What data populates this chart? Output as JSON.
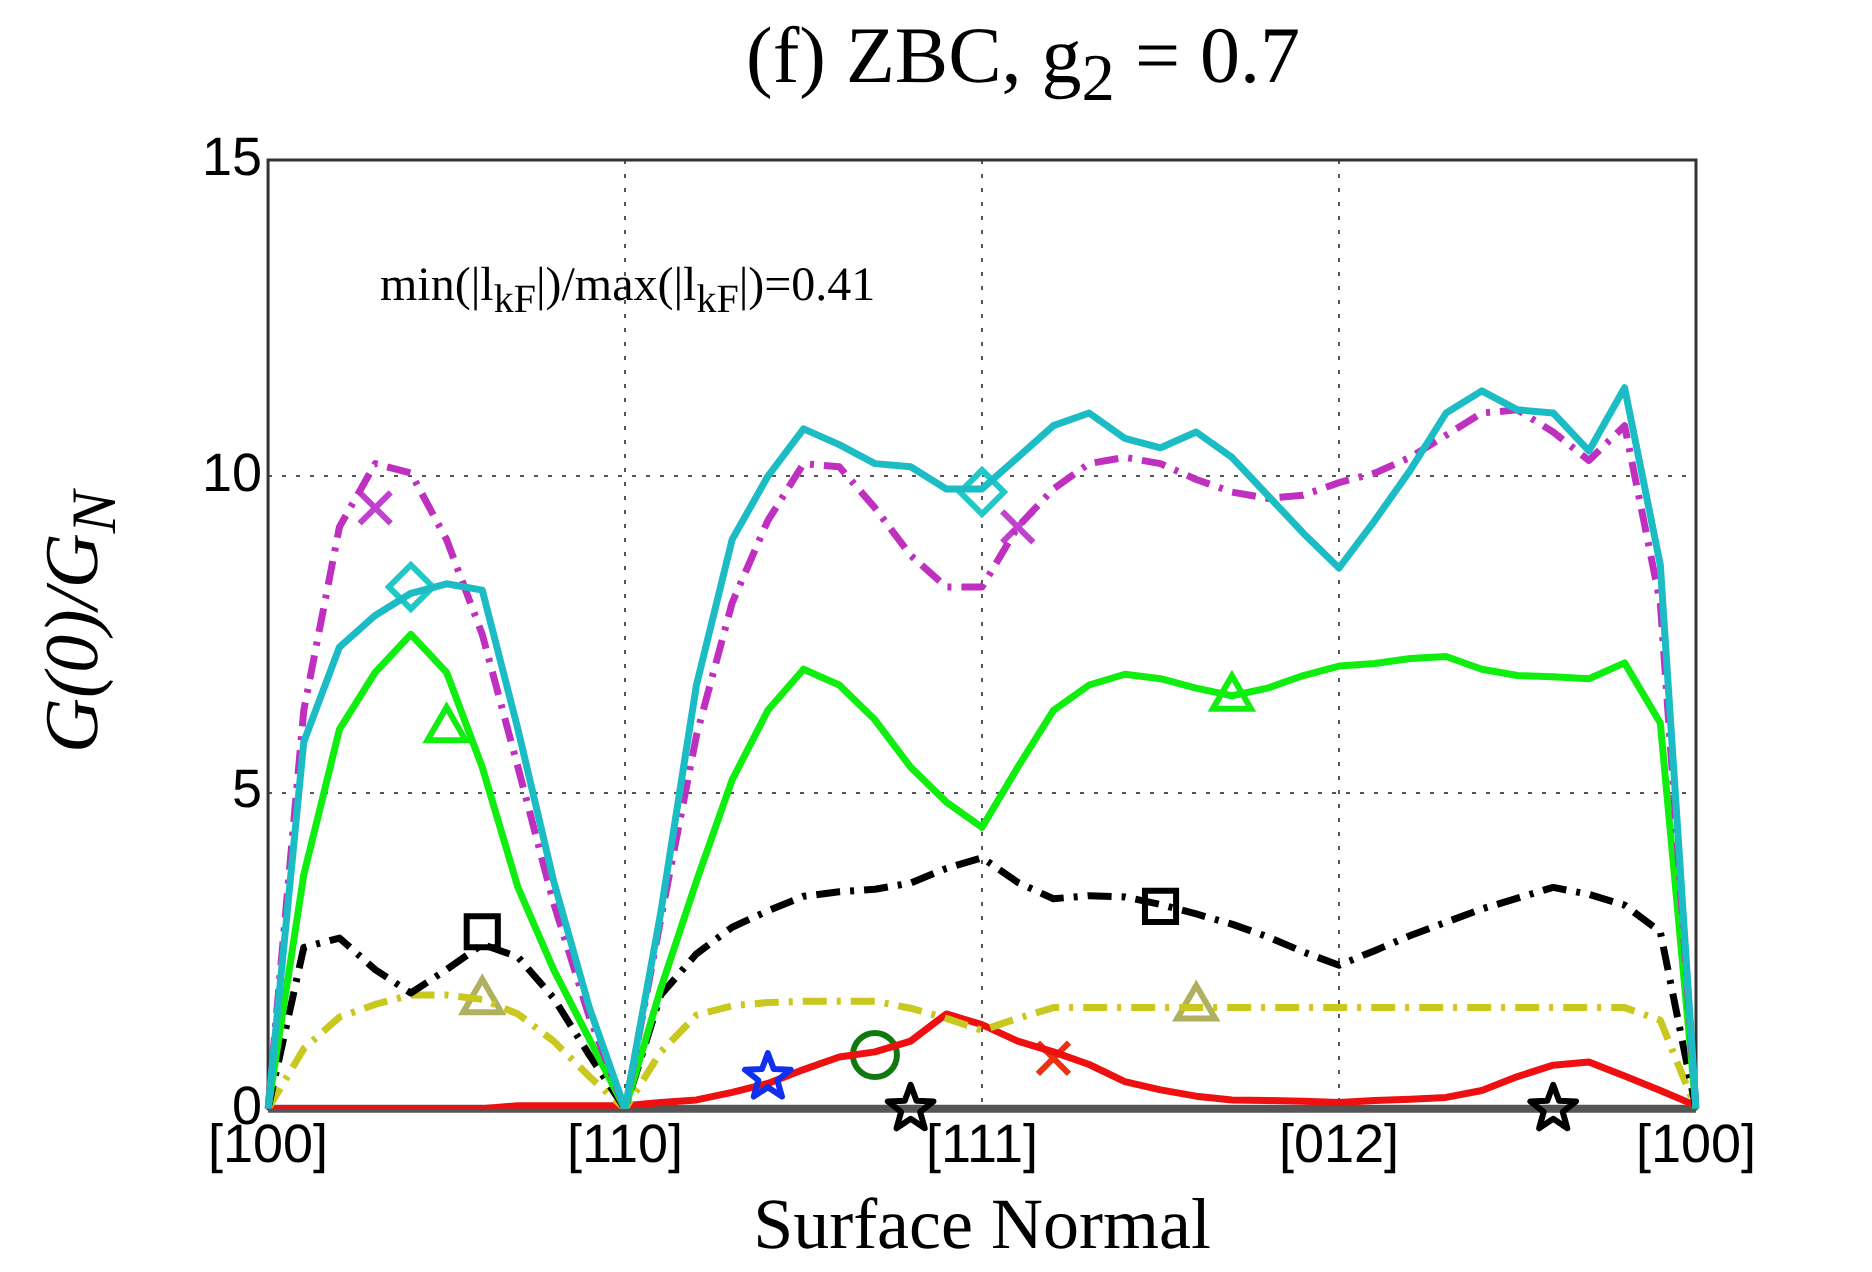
{
  "chart_data": {
    "type": "line",
    "title": "(f) ZBC, g$_{2}$ = 0.7",
    "xlabel": "Surface Normal",
    "ylabel": "G(0)/G$_{N}$",
    "annotations": [
      "min(|l$_{kF}$|)/max(|l$_{kF}$|)=0.41"
    ],
    "categories": [
      "[100]",
      null,
      null,
      null,
      null,
      null,
      null,
      null,
      null,
      null,
      "[110]",
      null,
      null,
      null,
      null,
      null,
      null,
      null,
      null,
      null,
      "[111]",
      null,
      null,
      null,
      null,
      null,
      null,
      null,
      null,
      null,
      "[012]",
      null,
      null,
      null,
      null,
      null,
      null,
      null,
      null,
      null,
      "[100]"
    ],
    "ylim": [
      0,
      15
    ],
    "yticks": [
      0,
      5,
      10,
      15
    ],
    "grid": true,
    "series": [
      {
        "color": "#1cbcc4",
        "line_style": "solid",
        "values": [
          0,
          5.8,
          7.3,
          7.8,
          8.15,
          8.3,
          8.2,
          6.0,
          3.6,
          1.6,
          0,
          3.1,
          6.7,
          9.0,
          10.0,
          10.75,
          10.5,
          10.2,
          10.15,
          9.8,
          9.8,
          10.3,
          10.8,
          11.0,
          10.6,
          10.45,
          10.7,
          10.3,
          9.7,
          9.1,
          8.55,
          9.3,
          10.1,
          11.0,
          11.35,
          11.05,
          11.0,
          10.4,
          11.4,
          8.6,
          0
        ]
      },
      {
        "color": "#c030c0",
        "line_style": "dashed",
        "values": [
          0,
          6.3,
          9.2,
          10.2,
          10.05,
          9.0,
          7.5,
          5.4,
          3.25,
          1.45,
          0,
          3,
          5.9,
          8.0,
          9.3,
          10.2,
          10.15,
          9.5,
          8.75,
          8.25,
          8.25,
          9.2,
          9.8,
          10.2,
          10.3,
          10.2,
          9.95,
          9.75,
          9.65,
          9.7,
          9.9,
          10.05,
          10.3,
          10.65,
          11.0,
          11.05,
          10.7,
          10.25,
          10.8,
          8.0,
          0
        ]
      },
      {
        "color": "#10ee10",
        "line_style": "solid",
        "values": [
          0,
          3.7,
          6.0,
          6.9,
          7.5,
          6.9,
          5.4,
          3.5,
          2.2,
          1.1,
          0,
          1.9,
          3.6,
          5.2,
          6.3,
          6.95,
          6.7,
          6.15,
          5.4,
          4.85,
          4.45,
          5.4,
          6.3,
          6.7,
          6.87,
          6.8,
          6.65,
          6.53,
          6.65,
          6.85,
          7.0,
          7.04,
          7.12,
          7.15,
          6.95,
          6.85,
          6.83,
          6.8,
          7.05,
          6.1,
          0
        ]
      },
      {
        "color": "#000000",
        "line_style": "dashed",
        "values": [
          0,
          2.55,
          2.7,
          2.2,
          1.83,
          2.2,
          2.6,
          2.4,
          1.75,
          0.85,
          0,
          1.8,
          2.45,
          2.87,
          3.13,
          3.36,
          3.43,
          3.47,
          3.57,
          3.8,
          3.97,
          3.58,
          3.32,
          3.37,
          3.35,
          3.23,
          3.08,
          2.92,
          2.72,
          2.48,
          2.27,
          2.5,
          2.74,
          2.95,
          3.16,
          3.33,
          3.5,
          3.39,
          3.22,
          2.8,
          0
        ]
      },
      {
        "color": "#c8c81e",
        "line_style": "dashed",
        "values": [
          0,
          0.95,
          1.45,
          1.65,
          1.8,
          1.8,
          1.73,
          1.5,
          1.07,
          0.51,
          0,
          0.9,
          1.48,
          1.63,
          1.68,
          1.7,
          1.7,
          1.7,
          1.59,
          1.43,
          1.24,
          1.43,
          1.6,
          1.6,
          1.6,
          1.6,
          1.6,
          1.6,
          1.6,
          1.6,
          1.6,
          1.6,
          1.6,
          1.6,
          1.6,
          1.6,
          1.6,
          1.6,
          1.6,
          1.4,
          0
        ]
      },
      {
        "color": "#ee1010",
        "line_style": "solid",
        "values": [
          0,
          0,
          0,
          0,
          0,
          0,
          0,
          0.05,
          0.05,
          0.05,
          0.05,
          0.1,
          0.14,
          0.26,
          0.4,
          0.62,
          0.82,
          0.9,
          1.07,
          1.5,
          1.33,
          1.07,
          0.9,
          0.7,
          0.43,
          0.3,
          0.2,
          0.14,
          0.13,
          0.12,
          0.1,
          0.13,
          0.15,
          0.18,
          0.29,
          0.51,
          0.69,
          0.74,
          0.52,
          0.29,
          0.05
        ]
      },
      {
        "type": "scatter",
        "color": "#20c8c8",
        "marker": "diamond",
        "values": [
          null,
          null,
          null,
          null,
          8.25,
          null,
          null,
          null,
          null,
          null,
          null,
          null,
          null,
          null,
          null,
          null,
          null,
          null,
          null,
          null,
          9.75,
          null,
          null,
          null,
          null,
          null,
          null,
          null,
          null,
          null,
          null,
          null,
          null,
          null,
          null,
          null,
          null,
          null,
          null,
          null,
          null
        ]
      },
      {
        "type": "scatter",
        "color": "#c040d0",
        "marker": "cross",
        "values": [
          null,
          null,
          null,
          9.5,
          null,
          null,
          null,
          null,
          null,
          null,
          null,
          null,
          null,
          null,
          null,
          null,
          null,
          null,
          null,
          null,
          null,
          9.2,
          null,
          null,
          null,
          null,
          null,
          null,
          null,
          null,
          null,
          null,
          null,
          null,
          null,
          null,
          null,
          null,
          null,
          null,
          null
        ]
      },
      {
        "type": "scatter",
        "color": "#10ee10",
        "marker": "triangle",
        "values": [
          null,
          null,
          null,
          null,
          null,
          6.0,
          null,
          null,
          null,
          null,
          null,
          null,
          null,
          null,
          null,
          null,
          null,
          null,
          null,
          null,
          null,
          null,
          null,
          null,
          null,
          null,
          null,
          6.5,
          null,
          null,
          null,
          null,
          null,
          null,
          null,
          null,
          null,
          null,
          null,
          null,
          null
        ]
      },
      {
        "type": "scatter",
        "color": "#000000",
        "marker": "square",
        "values": [
          null,
          null,
          null,
          null,
          null,
          null,
          2.8,
          null,
          null,
          null,
          null,
          null,
          null,
          null,
          null,
          null,
          null,
          null,
          null,
          null,
          null,
          null,
          null,
          null,
          null,
          3.2,
          null,
          null,
          null,
          null,
          null,
          null,
          null,
          null,
          null,
          null,
          null,
          null,
          null,
          null,
          null
        ]
      },
      {
        "type": "scatter",
        "color": "#b0b060",
        "marker": "triangle",
        "values": [
          null,
          null,
          null,
          null,
          null,
          null,
          1.7,
          null,
          null,
          null,
          null,
          null,
          null,
          null,
          null,
          null,
          null,
          null,
          null,
          null,
          null,
          null,
          null,
          null,
          null,
          null,
          1.6,
          null,
          null,
          null,
          null,
          null,
          null,
          null,
          null,
          null,
          null,
          null,
          null,
          null,
          null
        ]
      },
      {
        "type": "scatter",
        "color": "#1030ee",
        "marker": "star",
        "values": [
          null,
          null,
          null,
          null,
          null,
          null,
          null,
          null,
          null,
          null,
          null,
          null,
          null,
          null,
          0.5,
          null,
          null,
          null,
          null,
          null,
          null,
          null,
          null,
          null,
          null,
          null,
          null,
          null,
          null,
          null,
          null,
          null,
          null,
          null,
          null,
          null,
          null,
          null,
          null,
          null,
          null
        ]
      },
      {
        "type": "scatter",
        "color": "#107a10",
        "marker": "circle",
        "values": [
          null,
          null,
          null,
          null,
          null,
          null,
          null,
          null,
          null,
          null,
          null,
          null,
          null,
          null,
          null,
          null,
          null,
          0.85,
          null,
          null,
          null,
          null,
          null,
          null,
          null,
          null,
          null,
          null,
          null,
          null,
          null,
          null,
          null,
          null,
          null,
          null,
          null,
          null,
          null,
          null,
          null
        ]
      },
      {
        "type": "scatter",
        "color": "#ee3010",
        "marker": "cross",
        "values": [
          null,
          null,
          null,
          null,
          null,
          null,
          null,
          null,
          null,
          null,
          null,
          null,
          null,
          null,
          null,
          null,
          null,
          null,
          null,
          null,
          null,
          null,
          0.8,
          null,
          null,
          null,
          null,
          null,
          null,
          null,
          null,
          null,
          null,
          null,
          null,
          null,
          null,
          null,
          null,
          null,
          null
        ]
      },
      {
        "type": "scatter",
        "color": "#000000",
        "marker": "star",
        "values": [
          null,
          null,
          null,
          null,
          null,
          null,
          null,
          null,
          null,
          null,
          null,
          null,
          null,
          null,
          null,
          null,
          null,
          null,
          0,
          null,
          null,
          null,
          null,
          null,
          null,
          null,
          null,
          null,
          null,
          null,
          null,
          null,
          null,
          null,
          null,
          null,
          0,
          null,
          null,
          null,
          null
        ]
      }
    ]
  }
}
